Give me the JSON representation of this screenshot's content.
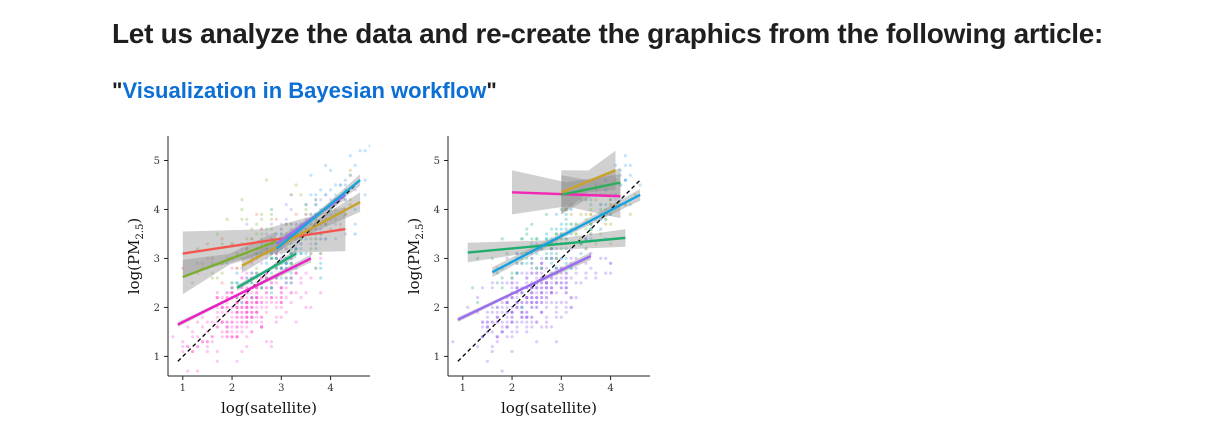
{
  "page": {
    "heading": "Let us analyze the data and re-create the graphics from the following article:",
    "quote_open": "\"",
    "article_title": "Visualization in Bayesian workflow",
    "quote_close": "\""
  },
  "chart_data": [
    {
      "type": "scatter",
      "title": "",
      "xlabel": "log(satellite)",
      "ylabel": "log(PM2.5)",
      "xlim": [
        0.7,
        4.8
      ],
      "ylim": [
        0.6,
        5.5
      ],
      "xticks": [
        1,
        2,
        3,
        4
      ],
      "yticks": [
        1,
        2,
        3,
        4,
        5
      ],
      "grid": false,
      "identity_line": {
        "style": "dashed",
        "color": "#000000",
        "x": [
          0.9,
          4.6
        ],
        "y": [
          0.9,
          4.6
        ]
      },
      "point_clouds": [
        {
          "color": "#ff5fd8",
          "center": [
            2.3,
            2.0
          ],
          "spread": [
            0.55,
            0.35
          ],
          "count": 330
        },
        {
          "color": "#a78bfa",
          "center": [
            3.4,
            3.6
          ],
          "spread": [
            0.45,
            0.35
          ],
          "count": 90
        },
        {
          "color": "#22b7d0",
          "center": [
            3.1,
            3.05
          ],
          "spread": [
            0.5,
            0.35
          ],
          "count": 80
        },
        {
          "color": "#8cc04f",
          "center": [
            2.3,
            3.35
          ],
          "spread": [
            0.5,
            0.35
          ],
          "count": 55
        },
        {
          "color": "#f47b6b",
          "center": [
            2.4,
            3.2
          ],
          "spread": [
            0.6,
            0.35
          ],
          "count": 30
        },
        {
          "color": "#c2a23a",
          "center": [
            3.9,
            3.8
          ],
          "spread": [
            0.4,
            0.3
          ],
          "count": 30
        },
        {
          "color": "#5aaef0",
          "center": [
            4.1,
            4.4
          ],
          "spread": [
            0.35,
            0.35
          ],
          "count": 40
        },
        {
          "color": "#36b37e",
          "center": [
            2.9,
            2.95
          ],
          "spread": [
            0.5,
            0.3
          ],
          "count": 30
        }
      ],
      "series": [
        {
          "color": "#f4564f",
          "x": [
            1.0,
            4.3
          ],
          "y": [
            3.1,
            3.6
          ],
          "band": [
            0.45,
            0.45
          ]
        },
        {
          "color": "#7cae2e",
          "x": [
            1.0,
            2.9
          ],
          "y": [
            2.62,
            3.35
          ],
          "band": [
            0.35,
            0.2
          ]
        },
        {
          "color": "#c9a227",
          "x": [
            2.2,
            4.6
          ],
          "y": [
            2.85,
            4.15
          ],
          "band": [
            0.15,
            0.2
          ]
        },
        {
          "color": "#9b6cf2",
          "x": [
            2.9,
            4.3
          ],
          "y": [
            3.3,
            4.3
          ],
          "band": [
            0.1,
            0.1
          ]
        },
        {
          "color": "#18a6e0",
          "x": [
            2.9,
            4.6
          ],
          "y": [
            3.2,
            4.6
          ],
          "band": [
            0.1,
            0.12
          ]
        },
        {
          "color": "#1aaf7a",
          "x": [
            2.1,
            3.3
          ],
          "y": [
            2.4,
            3.1
          ],
          "band": [
            0.06,
            0.08
          ]
        },
        {
          "color": "#ec1fc4",
          "x": [
            0.9,
            3.6
          ],
          "y": [
            1.65,
            3.0
          ],
          "band": [
            0.05,
            0.08
          ]
        }
      ]
    },
    {
      "type": "scatter",
      "title": "",
      "xlabel": "log(satellite)",
      "ylabel": "log(PM2.5)",
      "xlim": [
        0.7,
        4.8
      ],
      "ylim": [
        0.6,
        5.5
      ],
      "xticks": [
        1,
        2,
        3,
        4
      ],
      "yticks": [
        1,
        2,
        3,
        4,
        5
      ],
      "grid": false,
      "identity_line": {
        "style": "dashed",
        "color": "#000000",
        "x": [
          0.9,
          4.6
        ],
        "y": [
          0.9,
          4.6
        ]
      },
      "point_clouds": [
        {
          "color": "#a06cf2",
          "center": [
            2.4,
            2.2
          ],
          "spread": [
            0.55,
            0.35
          ],
          "count": 330
        },
        {
          "color": "#22b7d0",
          "center": [
            3.2,
            3.5
          ],
          "spread": [
            0.5,
            0.4
          ],
          "count": 80
        },
        {
          "color": "#36b37e",
          "center": [
            2.6,
            3.3
          ],
          "spread": [
            0.6,
            0.3
          ],
          "count": 55
        },
        {
          "color": "#8cc04f",
          "center": [
            3.5,
            3.6
          ],
          "spread": [
            0.4,
            0.3
          ],
          "count": 25
        },
        {
          "color": "#5aaef0",
          "center": [
            4.2,
            4.5
          ],
          "spread": [
            0.3,
            0.35
          ],
          "count": 30
        },
        {
          "color": "#c2a23a",
          "center": [
            3.9,
            4.2
          ],
          "spread": [
            0.35,
            0.3
          ],
          "count": 20
        }
      ],
      "series": [
        {
          "color": "#f426b5",
          "x": [
            2.0,
            4.2
          ],
          "y": [
            4.35,
            4.27
          ],
          "band": [
            0.45,
            0.45
          ]
        },
        {
          "color": "#c9a227",
          "x": [
            3.0,
            4.1
          ],
          "y": [
            4.35,
            4.8
          ],
          "band": [
            0.45,
            0.4
          ]
        },
        {
          "color": "#2fae5a",
          "x": [
            3.0,
            4.2
          ],
          "y": [
            4.3,
            4.55
          ],
          "band": [
            0.4,
            0.3
          ]
        },
        {
          "color": "#1fae6e",
          "x": [
            1.1,
            4.3
          ],
          "y": [
            3.12,
            3.42
          ],
          "band": [
            0.2,
            0.18
          ]
        },
        {
          "color": "#14a3e0",
          "x": [
            1.6,
            4.6
          ],
          "y": [
            2.72,
            4.3
          ],
          "band": [
            0.1,
            0.12
          ]
        },
        {
          "color": "#9b6cf2",
          "x": [
            0.9,
            3.6
          ],
          "y": [
            1.75,
            3.05
          ],
          "band": [
            0.05,
            0.08
          ]
        }
      ]
    }
  ]
}
